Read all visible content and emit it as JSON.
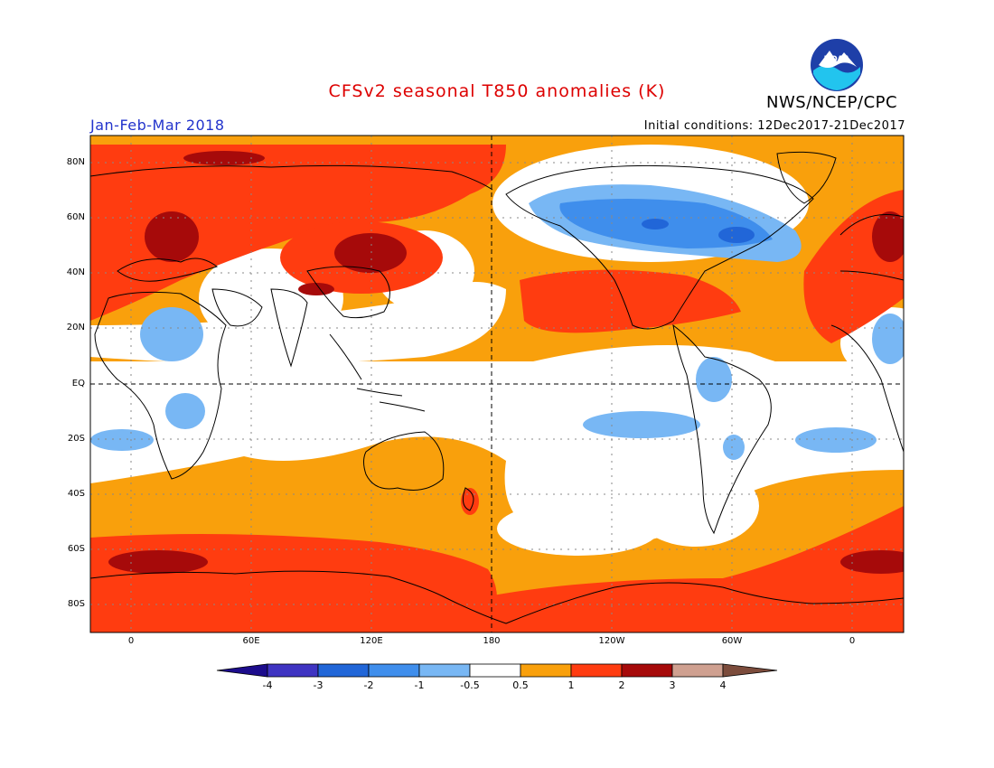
{
  "header": {
    "title": "CFSv2 seasonal T850 anomalies (K)",
    "agency": "NWS/NCEP/CPC",
    "season": "Jan-Feb-Mar 2018",
    "initial_conditions": "Initial conditions: 12Dec2017-21Dec2017",
    "logo_text": "NOAA"
  },
  "colors": {
    "title": "#dd0000",
    "season": "#2233cc",
    "lt_m4": "#1c0c8c",
    "m4_m3": "#3f34c2",
    "m3_m2": "#2166d8",
    "m2_m1": "#3f8eec",
    "m1_m05": "#78b7f4",
    "neutral": "#ffffff",
    "p05_p1": "#f9a00c",
    "p1_p2": "#ff3c10",
    "p2_p3": "#a60a0a",
    "p3_p4": "#cfa090",
    "gt_p4": "#7c4c3c"
  },
  "map": {
    "lat_labels": [
      "80N",
      "60N",
      "40N",
      "20N",
      "EQ",
      "20S",
      "40S",
      "60S",
      "80S"
    ],
    "lon_labels": [
      "0",
      "60E",
      "120E",
      "180",
      "120W",
      "60W",
      "0"
    ]
  },
  "colorbar": {
    "labels": [
      "-4",
      "-3",
      "-2",
      "-1",
      "-0.5",
      "0.5",
      "1",
      "2",
      "3",
      "4"
    ]
  }
}
